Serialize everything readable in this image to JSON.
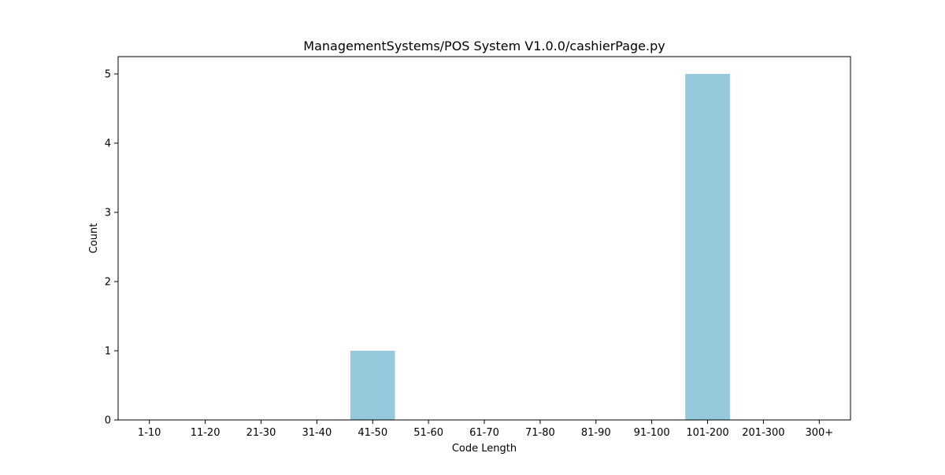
{
  "chart_data": {
    "type": "bar",
    "title": "ManagementSystems/POS System V1.0.0/cashierPage.py",
    "xlabel": "Code Length",
    "ylabel": "Count",
    "categories": [
      "1-10",
      "11-20",
      "21-30",
      "31-40",
      "41-50",
      "51-60",
      "61-70",
      "71-80",
      "81-90",
      "91-100",
      "101-200",
      "201-300",
      "300+"
    ],
    "values": [
      0,
      0,
      0,
      0,
      1,
      0,
      0,
      0,
      0,
      0,
      5,
      0,
      0
    ],
    "ylim": [
      0,
      5.25
    ],
    "yticks": [
      0,
      1,
      2,
      3,
      4,
      5
    ],
    "grid": false,
    "legend": "none",
    "bar_color": "#96c9dc"
  }
}
